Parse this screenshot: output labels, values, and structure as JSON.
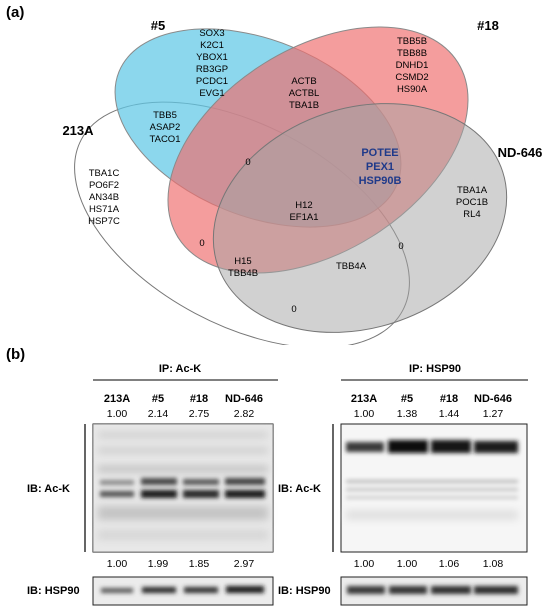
{
  "panel_a": {
    "label": "(a)",
    "sets": {
      "s213A": "213A",
      "s5": "#5",
      "s18": "#18",
      "sND": "ND-646"
    },
    "colors": {
      "s5": "#5fc8e6",
      "s18": "#ef6f6f",
      "sND": "#a3a3a3",
      "text": "#000000",
      "highlight": "#1f3a8a"
    },
    "regions": [
      {
        "id": "only-5",
        "items": [
          "SOX3",
          "K2C1",
          "YBOX1",
          "RB3GP",
          "PCDC1",
          "EVG1"
        ]
      },
      {
        "id": "only-18",
        "items": [
          "TBB5B",
          "TBB8B",
          "DNHD1",
          "CSMD2",
          "HS90A"
        ]
      },
      {
        "id": "5-18",
        "items": [
          "ACTB",
          "ACTBL",
          "TBA1B"
        ]
      },
      {
        "id": "213A-5",
        "items": [
          "TBB5",
          "ASAP2",
          "TACO1"
        ]
      },
      {
        "id": "5-18-ND",
        "items": [
          "POTEE",
          "PEX1",
          "HSP90B"
        ],
        "highlight": true
      },
      {
        "id": "only-213A",
        "items": [
          "TBA1C",
          "PO6F2",
          "AN34B",
          "HS71A",
          "HSP7C"
        ]
      },
      {
        "id": "only-ND",
        "items": [
          "TBA1A",
          "POC1B",
          "RL4"
        ]
      },
      {
        "id": "all-four",
        "items": [
          "H12",
          "EF1A1"
        ]
      },
      {
        "id": "213A-18-ND",
        "items": [
          "H15",
          "TBB4B"
        ]
      },
      {
        "id": "213A-ND-a",
        "items": [
          "TBB4A"
        ]
      },
      {
        "id": "zero-a",
        "items": [
          "0"
        ]
      },
      {
        "id": "zero-b",
        "items": [
          "0"
        ]
      },
      {
        "id": "zero-c",
        "items": [
          "0"
        ]
      },
      {
        "id": "zero-d",
        "items": [
          "0"
        ]
      }
    ]
  },
  "panel_b": {
    "label": "(b)",
    "left": {
      "ip_label": "IP: Ac-K",
      "lanes": [
        "213A",
        "#5",
        "#18",
        "ND-646"
      ],
      "top_values": [
        "1.00",
        "2.14",
        "2.75",
        "2.82"
      ],
      "mid_values": [
        "1.00",
        "1.99",
        "1.85",
        "2.97"
      ],
      "ib_main": "IB: Ac-K",
      "ib_bottom": "IB: HSP90"
    },
    "right": {
      "ip_label": "IP: HSP90",
      "lanes": [
        "213A",
        "#5",
        "#18",
        "ND-646"
      ],
      "top_values": [
        "1.00",
        "1.38",
        "1.44",
        "1.27"
      ],
      "mid_values": [
        "1.00",
        "1.00",
        "1.06",
        "1.08"
      ],
      "ib_main": "IB: Ac-K",
      "ib_bottom": "IB: HSP90"
    }
  }
}
